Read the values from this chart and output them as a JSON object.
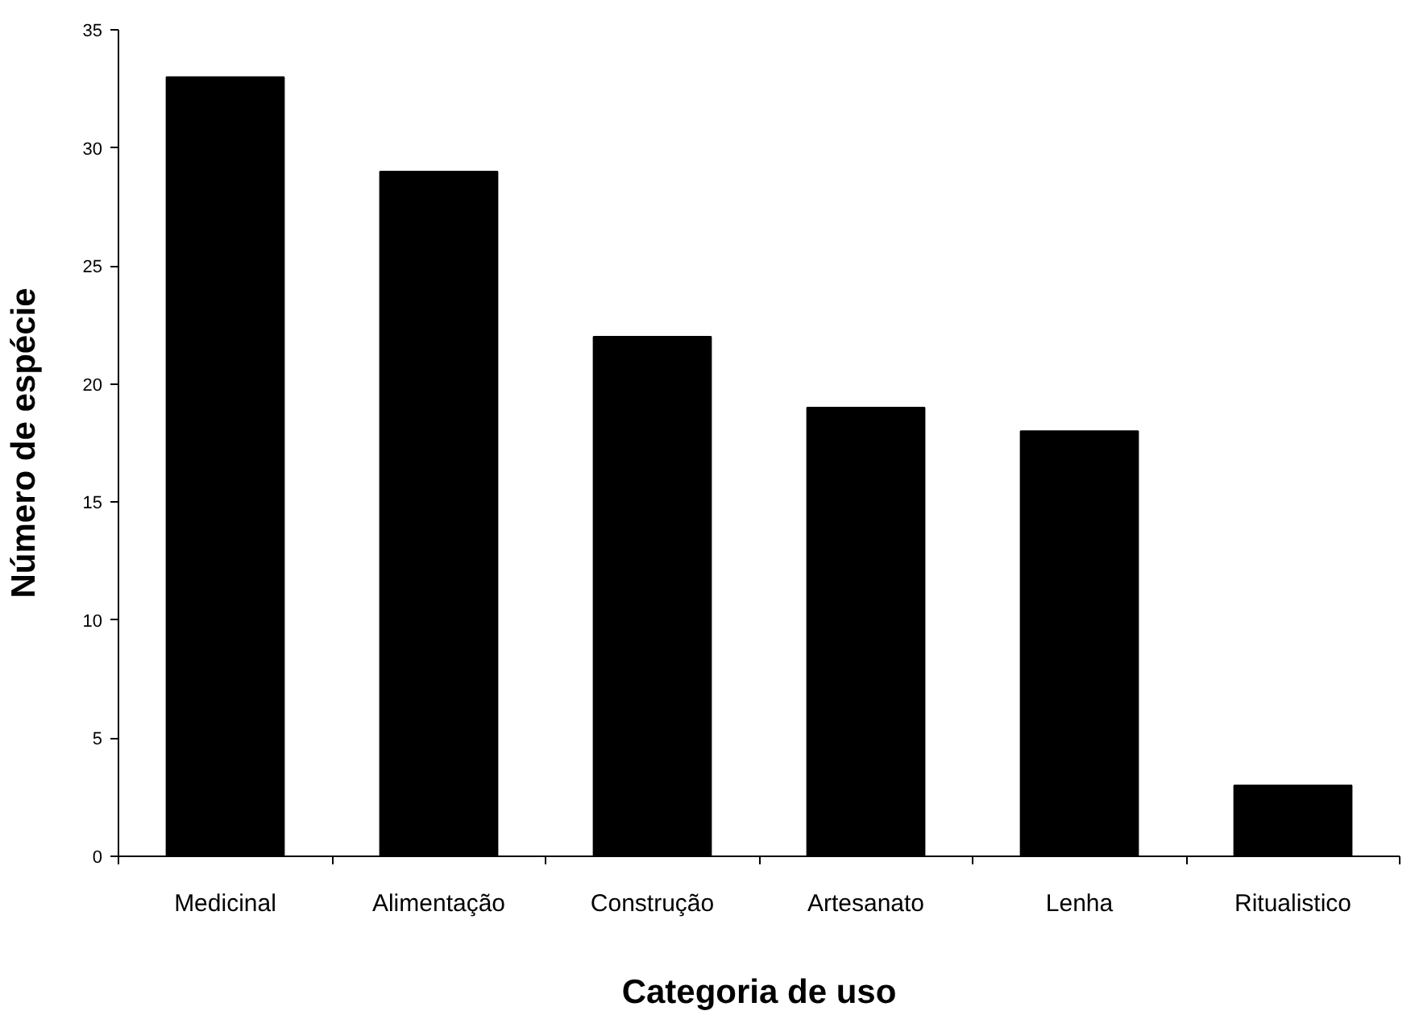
{
  "chart_data": {
    "type": "bar",
    "xlabel": "Categoria de uso",
    "ylabel": "Número de espécie",
    "categories": [
      "Medicinal",
      "Alimentação",
      "Construção",
      "Artesanato",
      "Lenha",
      "Ritualistico"
    ],
    "values": [
      33,
      29,
      22,
      19,
      18,
      3
    ],
    "color": "#000000",
    "ylim": [
      0,
      35
    ],
    "yticks": [
      0,
      5,
      10,
      15,
      20,
      25,
      30,
      35
    ],
    "grid": false
  }
}
